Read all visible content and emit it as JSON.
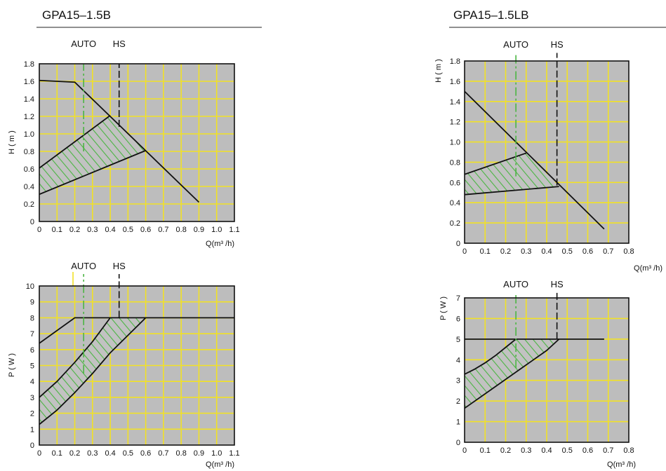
{
  "colors": {
    "plot_background": "#bdbdbd",
    "grid": "#f1e126",
    "curve": "#111111",
    "auto_marker": "#4bb543",
    "hatch": "#4bb543"
  },
  "models": [
    {
      "title": "GPA15–1.5B"
    },
    {
      "title": "GPA15–1.5LB"
    }
  ],
  "chart_data": [
    {
      "type": "line",
      "model": "GPA15–1.5B",
      "metric": "head",
      "xlabel": "Q(m³ /h)",
      "ylabel": "H ( m )",
      "xlim": [
        0,
        1.1
      ],
      "ylim": [
        0,
        1.8
      ],
      "xticks": [
        "0",
        "0.1",
        "0.2",
        "0.3",
        "0.4",
        "0.5",
        "0.6",
        "0.7",
        "0.8",
        "0.9",
        "1.0",
        "1.1"
      ],
      "yticks": [
        "0",
        "0.2",
        "0.4",
        "0.6",
        "0.8",
        "1.0",
        "1.2",
        "1.4",
        "1.6",
        "1.8"
      ],
      "markers": [
        {
          "label": "AUTO",
          "x": 0.25,
          "y_from": 0.8,
          "y_to": 1.8,
          "style": "auto"
        },
        {
          "label": "HS",
          "x": 0.45,
          "y_from": 1.08,
          "y_to": 1.8,
          "style": "hs"
        }
      ],
      "lines": [
        {
          "points": [
            [
              0,
              1.61
            ],
            [
              0.2,
              1.59
            ],
            [
              0.9,
              0.22
            ]
          ]
        },
        {
          "points": [
            [
              0,
              0.61
            ],
            [
              0.4,
              1.21
            ]
          ]
        },
        {
          "points": [
            [
              0,
              0.31
            ],
            [
              0.6,
              0.81
            ]
          ]
        }
      ],
      "hatched_region": [
        [
          0,
          0.61
        ],
        [
          0.4,
          1.21
        ],
        [
          0.6,
          0.81
        ],
        [
          0,
          0.31
        ]
      ]
    },
    {
      "type": "line",
      "model": "GPA15–1.5B",
      "metric": "power",
      "xlabel": "Q(m³ /h)",
      "ylabel": "P ( W )",
      "xlim": [
        0,
        1.1
      ],
      "ylim": [
        0,
        10
      ],
      "xticks": [
        "0",
        "0.1",
        "0.2",
        "0.3",
        "0.4",
        "0.5",
        "0.6",
        "0.7",
        "0.8",
        "0.9",
        "1.0",
        "1.1"
      ],
      "yticks": [
        "0",
        "1",
        "2",
        "3",
        "4",
        "5",
        "6",
        "7",
        "8",
        "9",
        "10"
      ],
      "markers": [
        {
          "label": "AUTO",
          "x": 0.25,
          "y_from": 4.5,
          "y_to": 10.8,
          "style": "auto"
        },
        {
          "label": "HS",
          "x": 0.45,
          "y_from": 8,
          "y_to": 10.8,
          "style": "hs"
        }
      ],
      "lines": [
        {
          "points": [
            [
              0,
              6.4
            ],
            [
              0.2,
              8
            ],
            [
              1.1,
              8
            ]
          ]
        },
        {
          "points": [
            [
              0,
              3.0
            ],
            [
              0.1,
              4.0
            ],
            [
              0.2,
              5.2
            ],
            [
              0.3,
              6.5
            ],
            [
              0.4,
              8
            ]
          ]
        },
        {
          "points": [
            [
              0,
              1.3
            ],
            [
              0.1,
              2.2
            ],
            [
              0.2,
              3.3
            ],
            [
              0.3,
              4.5
            ],
            [
              0.4,
              5.8
            ],
            [
              0.5,
              6.9
            ],
            [
              0.6,
              8
            ]
          ]
        }
      ],
      "hatched_region": [
        [
          0,
          3.0
        ],
        [
          0.1,
          4.0
        ],
        [
          0.2,
          5.2
        ],
        [
          0.3,
          6.5
        ],
        [
          0.4,
          8
        ],
        [
          0.6,
          8
        ],
        [
          0.5,
          6.9
        ],
        [
          0.4,
          5.8
        ],
        [
          0.3,
          4.5
        ],
        [
          0.2,
          3.3
        ],
        [
          0.1,
          2.2
        ],
        [
          0,
          1.3
        ]
      ]
    },
    {
      "type": "line",
      "model": "GPA15–1.5LB",
      "metric": "head",
      "xlabel": "Q(m³ /h)",
      "ylabel": "H ( m )",
      "xlim": [
        0,
        0.8
      ],
      "ylim": [
        0,
        1.8
      ],
      "xticks": [
        "0",
        "0.1",
        "0.2",
        "0.3",
        "0.4",
        "0.5",
        "0.6",
        "0.7",
        "0.8"
      ],
      "yticks": [
        "0",
        "0.2",
        "0.4",
        "0.6",
        "0.8",
        "1.0",
        "1.2",
        "1.4",
        "1.6",
        "1.8"
      ],
      "markers": [
        {
          "label": "AUTO",
          "x": 0.25,
          "y_from": 0.66,
          "y_to": 1.88,
          "style": "auto"
        },
        {
          "label": "HS",
          "x": 0.45,
          "y_from": 0.57,
          "y_to": 1.88,
          "style": "hs"
        }
      ],
      "lines": [
        {
          "points": [
            [
              0,
              1.5
            ],
            [
              0.68,
              0.14
            ]
          ]
        },
        {
          "points": [
            [
              0,
              0.68
            ],
            [
              0.3,
              0.89
            ]
          ]
        },
        {
          "points": [
            [
              0,
              0.48
            ],
            [
              0.46,
              0.56
            ]
          ]
        }
      ],
      "hatched_region": [
        [
          0,
          0.68
        ],
        [
          0.3,
          0.89
        ],
        [
          0.46,
          0.56
        ],
        [
          0,
          0.48
        ]
      ]
    },
    {
      "type": "line",
      "model": "GPA15–1.5LB",
      "metric": "power",
      "xlabel": "Q(m³ /h)",
      "ylabel": "P ( W )",
      "xlim": [
        0,
        0.8
      ],
      "ylim": [
        0,
        7
      ],
      "xticks": [
        "0",
        "0.1",
        "0.2",
        "0.3",
        "0.4",
        "0.5",
        "0.6",
        "0.7",
        "0.8"
      ],
      "yticks": [
        "0",
        "1",
        "2",
        "3",
        "4",
        "5",
        "6",
        "7"
      ],
      "markers": [
        {
          "label": "AUTO",
          "x": 0.25,
          "y_from": 3.6,
          "y_to": 7.4,
          "style": "auto"
        },
        {
          "label": "HS",
          "x": 0.45,
          "y_from": 5,
          "y_to": 7.4,
          "style": "hs"
        }
      ],
      "lines": [
        {
          "points": [
            [
              0,
              5
            ],
            [
              0.68,
              5
            ]
          ]
        },
        {
          "points": [
            [
              0,
              3.3
            ],
            [
              0.05,
              3.55
            ],
            [
              0.1,
              3.85
            ],
            [
              0.15,
              4.2
            ],
            [
              0.2,
              4.6
            ],
            [
              0.25,
              5
            ]
          ]
        },
        {
          "points": [
            [
              0,
              1.65
            ],
            [
              0.1,
              2.35
            ],
            [
              0.2,
              3.05
            ],
            [
              0.3,
              3.75
            ],
            [
              0.4,
              4.45
            ],
            [
              0.46,
              5
            ]
          ]
        }
      ],
      "hatched_region": [
        [
          0,
          3.3
        ],
        [
          0.05,
          3.55
        ],
        [
          0.1,
          3.85
        ],
        [
          0.15,
          4.2
        ],
        [
          0.2,
          4.6
        ],
        [
          0.25,
          5
        ],
        [
          0.46,
          5
        ],
        [
          0.4,
          4.45
        ],
        [
          0.3,
          3.75
        ],
        [
          0.2,
          3.05
        ],
        [
          0.1,
          2.35
        ],
        [
          0,
          1.65
        ]
      ]
    }
  ]
}
